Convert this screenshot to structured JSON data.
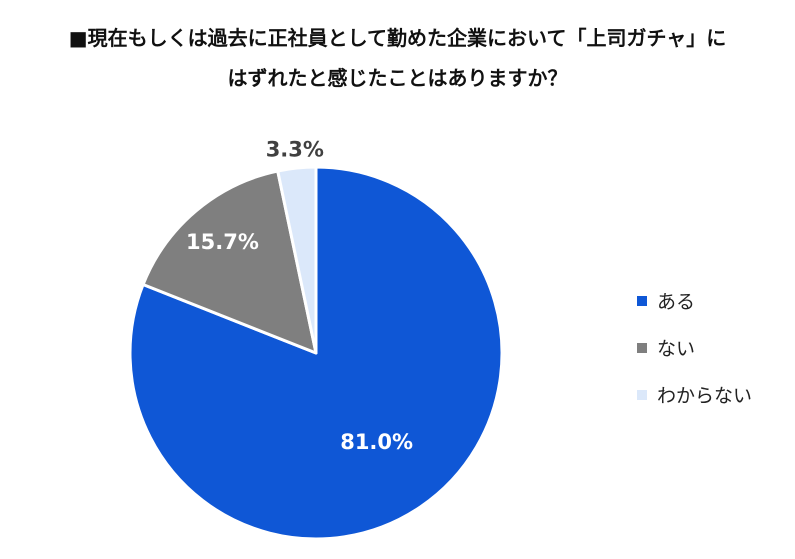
{
  "title": {
    "line1": "■現在もしくは過去に正社員として勤めた企業において「上司ガチャ」に",
    "line2": "はずれたと感じたことはありますか？"
  },
  "chart_data": {
    "type": "pie",
    "categories": [
      "ある",
      "ない",
      "わからない"
    ],
    "values": [
      81.0,
      15.7,
      3.3
    ],
    "labels": [
      "81.0%",
      "15.7%",
      "3.3%"
    ],
    "colors": [
      "#0f57d6",
      "#7f7f7f",
      "#dbe8fa"
    ],
    "label_colors": [
      "#ffffff",
      "#ffffff",
      "#404040"
    ],
    "start_angle_deg": 0,
    "direction": "clockwise",
    "legend_position": "right"
  }
}
